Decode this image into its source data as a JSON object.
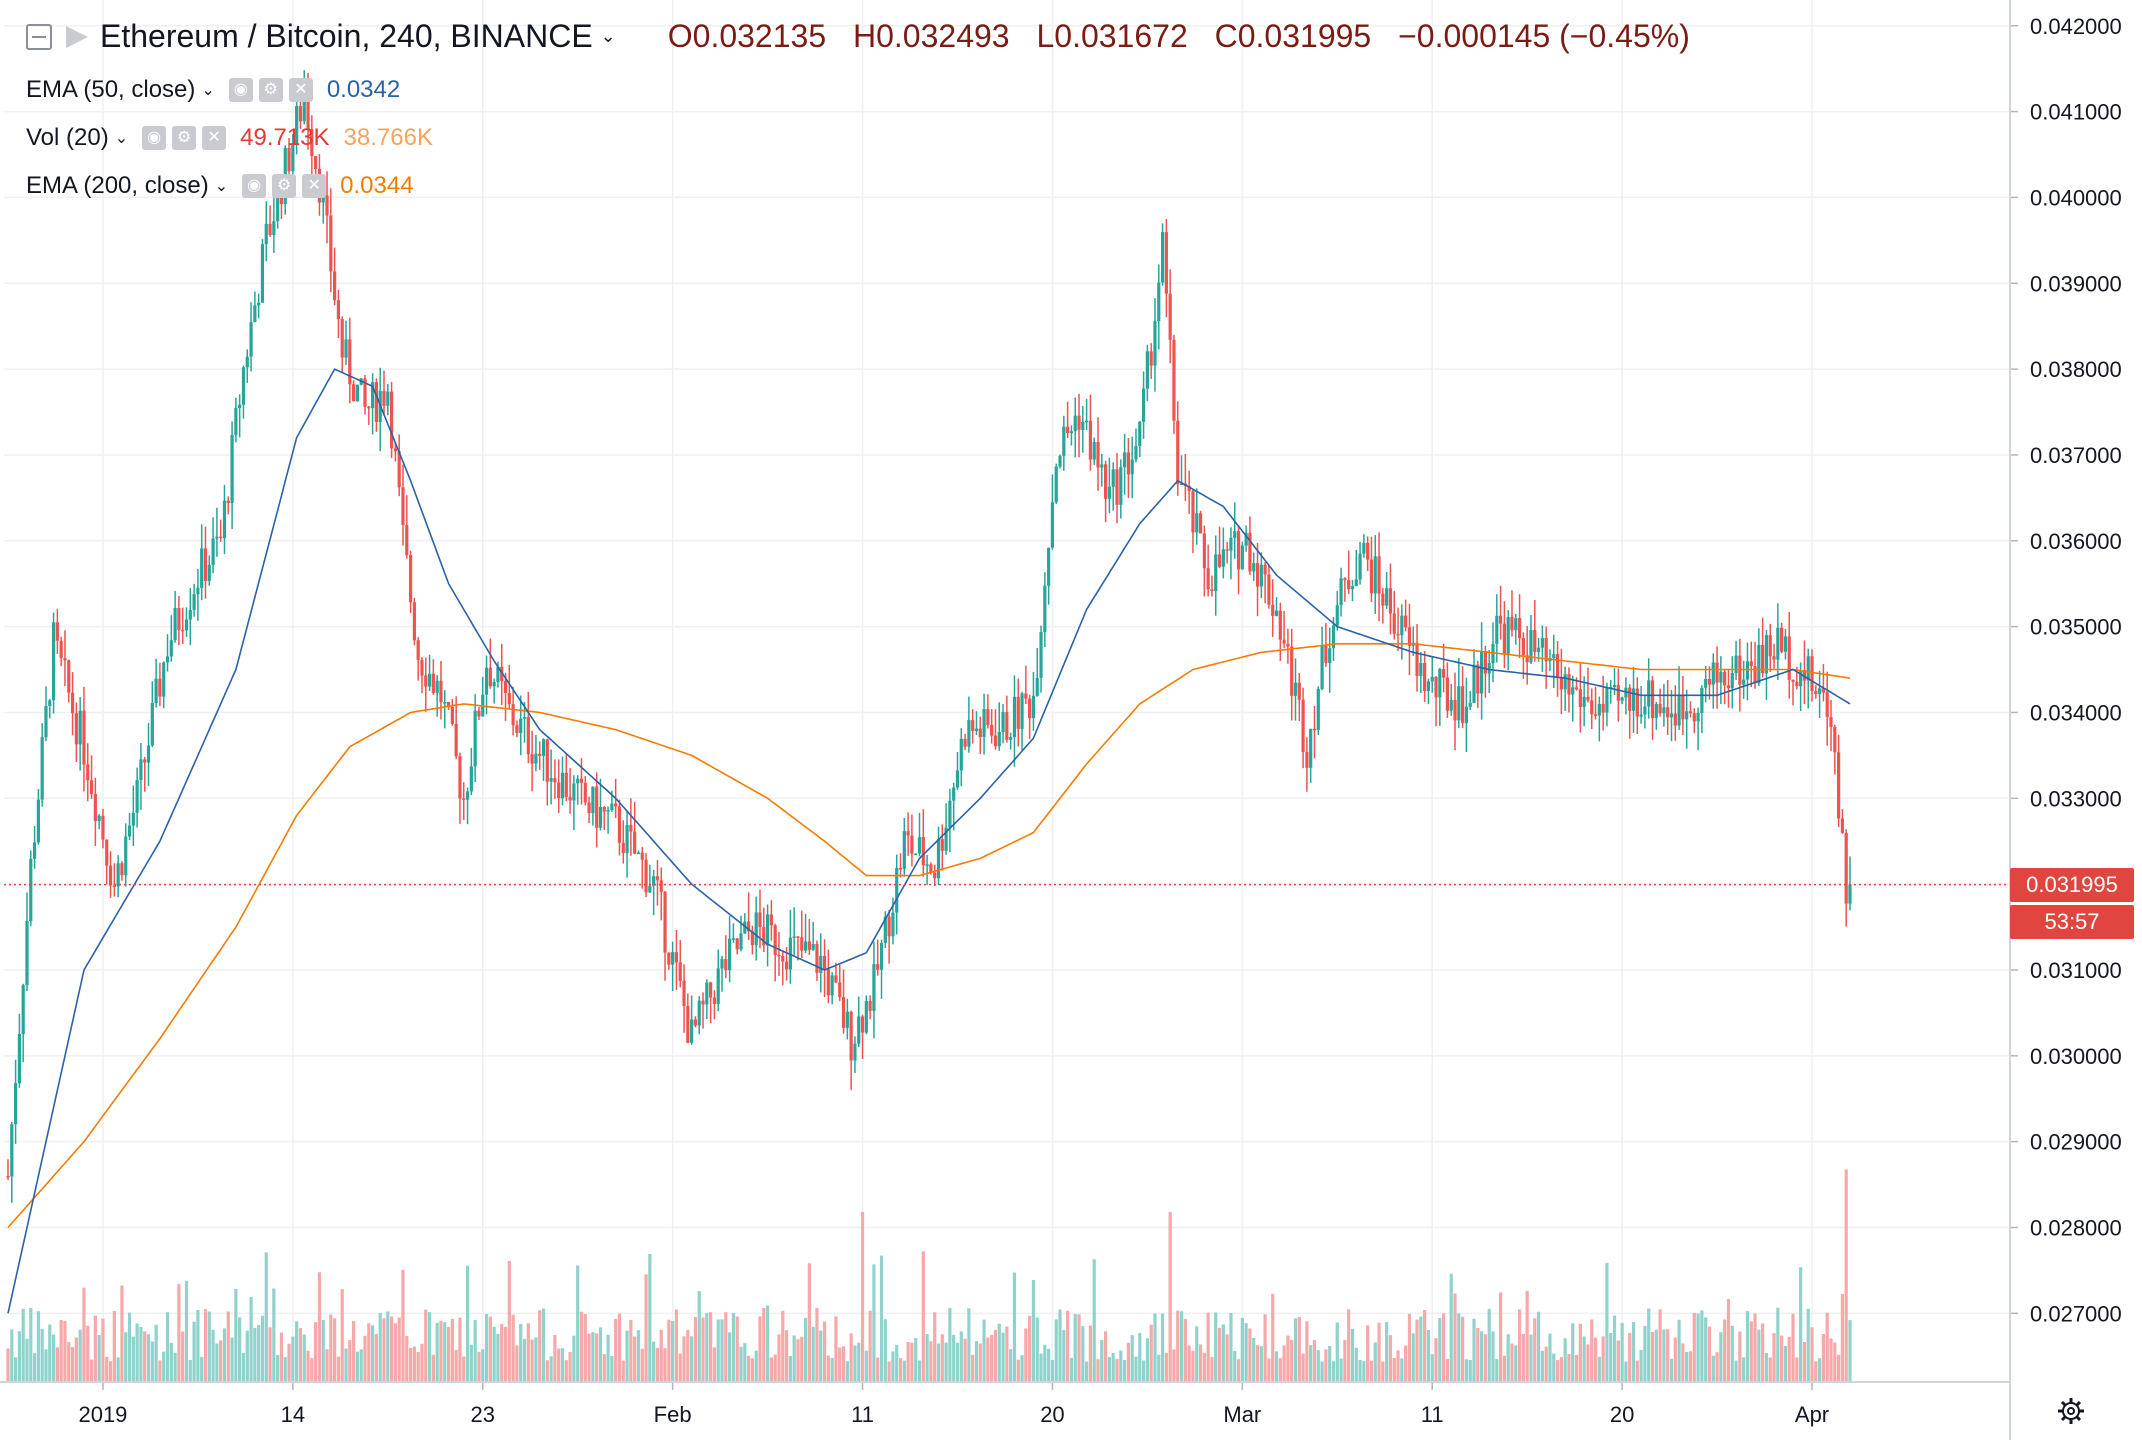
{
  "header": {
    "symbol": "Ethereum / Bitcoin, 240, BINANCE",
    "open": "O0.032135",
    "high": "H0.032493",
    "low": "L0.031672",
    "close": "C0.031995",
    "change": "−0.000145 (−0.45%)"
  },
  "indicators": [
    {
      "name": "EMA (50, close)",
      "value": "0.0342",
      "color": "#2962a8"
    },
    {
      "name": "Vol (20)",
      "value": "49.713K",
      "value2": "38.766K",
      "color": "#e53935",
      "color2": "#f7a35c"
    },
    {
      "name": "EMA (200, close)",
      "value": "0.0344",
      "color": "#f57c00"
    }
  ],
  "last_price_label": "0.031995",
  "countdown_label": "53:57",
  "chart_data": {
    "type": "candlestick",
    "y_axis_ticks": [
      "0.042000",
      "0.041000",
      "0.040000",
      "0.039000",
      "0.038000",
      "0.037000",
      "0.036000",
      "0.035000",
      "0.034000",
      "0.033000",
      "0.032000",
      "0.031000",
      "0.030000",
      "0.029000",
      "0.028000",
      "0.027000"
    ],
    "ylim": [
      0.0262,
      0.0423
    ],
    "last_price": 0.031995,
    "x_axis_labels": [
      "2019",
      "14",
      "23",
      "Feb",
      "11",
      "20",
      "Mar",
      "11",
      "20",
      "Apr"
    ],
    "x_label_candle_index": [
      25,
      75,
      125,
      175,
      225,
      275,
      325,
      375,
      425,
      475
    ],
    "candle_count": 486,
    "price_path_anchors": [
      [
        0,
        0.0286
      ],
      [
        6,
        0.0322
      ],
      [
        12,
        0.0348
      ],
      [
        20,
        0.0336
      ],
      [
        28,
        0.032
      ],
      [
        34,
        0.033
      ],
      [
        42,
        0.0348
      ],
      [
        50,
        0.0356
      ],
      [
        56,
        0.036
      ],
      [
        62,
        0.038
      ],
      [
        68,
        0.0395
      ],
      [
        74,
        0.0405
      ],
      [
        78,
        0.0412
      ],
      [
        82,
        0.0402
      ],
      [
        88,
        0.0382
      ],
      [
        94,
        0.0375
      ],
      [
        100,
        0.0378
      ],
      [
        104,
        0.036
      ],
      [
        108,
        0.0347
      ],
      [
        114,
        0.0342
      ],
      [
        120,
        0.033
      ],
      [
        126,
        0.0346
      ],
      [
        132,
        0.034
      ],
      [
        140,
        0.0335
      ],
      [
        150,
        0.033
      ],
      [
        160,
        0.0327
      ],
      [
        170,
        0.032
      ],
      [
        180,
        0.0302
      ],
      [
        188,
        0.031
      ],
      [
        196,
        0.0315
      ],
      [
        204,
        0.0313
      ],
      [
        214,
        0.0311
      ],
      [
        222,
        0.0302
      ],
      [
        228,
        0.0308
      ],
      [
        236,
        0.0325
      ],
      [
        244,
        0.0322
      ],
      [
        252,
        0.0338
      ],
      [
        262,
        0.0338
      ],
      [
        270,
        0.0342
      ],
      [
        276,
        0.037
      ],
      [
        282,
        0.0375
      ],
      [
        290,
        0.0365
      ],
      [
        298,
        0.0372
      ],
      [
        304,
        0.0394
      ],
      [
        308,
        0.0368
      ],
      [
        316,
        0.0356
      ],
      [
        326,
        0.036
      ],
      [
        334,
        0.0352
      ],
      [
        342,
        0.0336
      ],
      [
        348,
        0.035
      ],
      [
        356,
        0.0359
      ],
      [
        364,
        0.0352
      ],
      [
        374,
        0.0343
      ],
      [
        384,
        0.0341
      ],
      [
        392,
        0.035
      ],
      [
        400,
        0.0348
      ],
      [
        410,
        0.0343
      ],
      [
        420,
        0.034
      ],
      [
        430,
        0.0342
      ],
      [
        440,
        0.034
      ],
      [
        450,
        0.0344
      ],
      [
        458,
        0.0345
      ],
      [
        466,
        0.0348
      ],
      [
        474,
        0.0344
      ],
      [
        480,
        0.034
      ],
      [
        484,
        0.032
      ],
      [
        485,
        0.032
      ]
    ],
    "ema50_anchors": [
      [
        0,
        0.027
      ],
      [
        20,
        0.031
      ],
      [
        40,
        0.0325
      ],
      [
        60,
        0.0345
      ],
      [
        76,
        0.0372
      ],
      [
        86,
        0.038
      ],
      [
        96,
        0.0378
      ],
      [
        106,
        0.0367
      ],
      [
        116,
        0.0355
      ],
      [
        128,
        0.0346
      ],
      [
        140,
        0.0338
      ],
      [
        160,
        0.033
      ],
      [
        180,
        0.032
      ],
      [
        200,
        0.0313
      ],
      [
        215,
        0.031
      ],
      [
        226,
        0.0312
      ],
      [
        240,
        0.0323
      ],
      [
        256,
        0.033
      ],
      [
        270,
        0.0337
      ],
      [
        284,
        0.0352
      ],
      [
        298,
        0.0362
      ],
      [
        308,
        0.0367
      ],
      [
        320,
        0.0364
      ],
      [
        334,
        0.0356
      ],
      [
        350,
        0.035
      ],
      [
        370,
        0.0347
      ],
      [
        390,
        0.0345
      ],
      [
        410,
        0.0344
      ],
      [
        430,
        0.0342
      ],
      [
        450,
        0.0342
      ],
      [
        470,
        0.0345
      ],
      [
        485,
        0.0341
      ]
    ],
    "ema200_anchors": [
      [
        0,
        0.028
      ],
      [
        20,
        0.029
      ],
      [
        40,
        0.0302
      ],
      [
        60,
        0.0315
      ],
      [
        76,
        0.0328
      ],
      [
        90,
        0.0336
      ],
      [
        106,
        0.034
      ],
      [
        120,
        0.0341
      ],
      [
        140,
        0.034
      ],
      [
        160,
        0.0338
      ],
      [
        180,
        0.0335
      ],
      [
        200,
        0.033
      ],
      [
        215,
        0.0325
      ],
      [
        226,
        0.0321
      ],
      [
        240,
        0.0321
      ],
      [
        256,
        0.0323
      ],
      [
        270,
        0.0326
      ],
      [
        284,
        0.0334
      ],
      [
        298,
        0.0341
      ],
      [
        312,
        0.0345
      ],
      [
        330,
        0.0347
      ],
      [
        350,
        0.0348
      ],
      [
        370,
        0.0348
      ],
      [
        390,
        0.0347
      ],
      [
        410,
        0.0346
      ],
      [
        430,
        0.0345
      ],
      [
        450,
        0.0345
      ],
      [
        470,
        0.0345
      ],
      [
        485,
        0.0344
      ]
    ],
    "volume_spikes": [
      [
        225,
        1.0
      ],
      [
        306,
        1.0
      ],
      [
        484,
        1.25
      ],
      [
        70,
        0.55
      ],
      [
        270,
        0.6
      ],
      [
        200,
        0.45
      ]
    ],
    "colors": {
      "up": "#26a69a",
      "down": "#ef5350",
      "volume_up": "#8fd3cc",
      "volume_down": "#f7a8a8",
      "ema50": "#2962a8",
      "ema200": "#f57c00",
      "grid": "#eef0f3",
      "axis_text": "#131722"
    }
  }
}
